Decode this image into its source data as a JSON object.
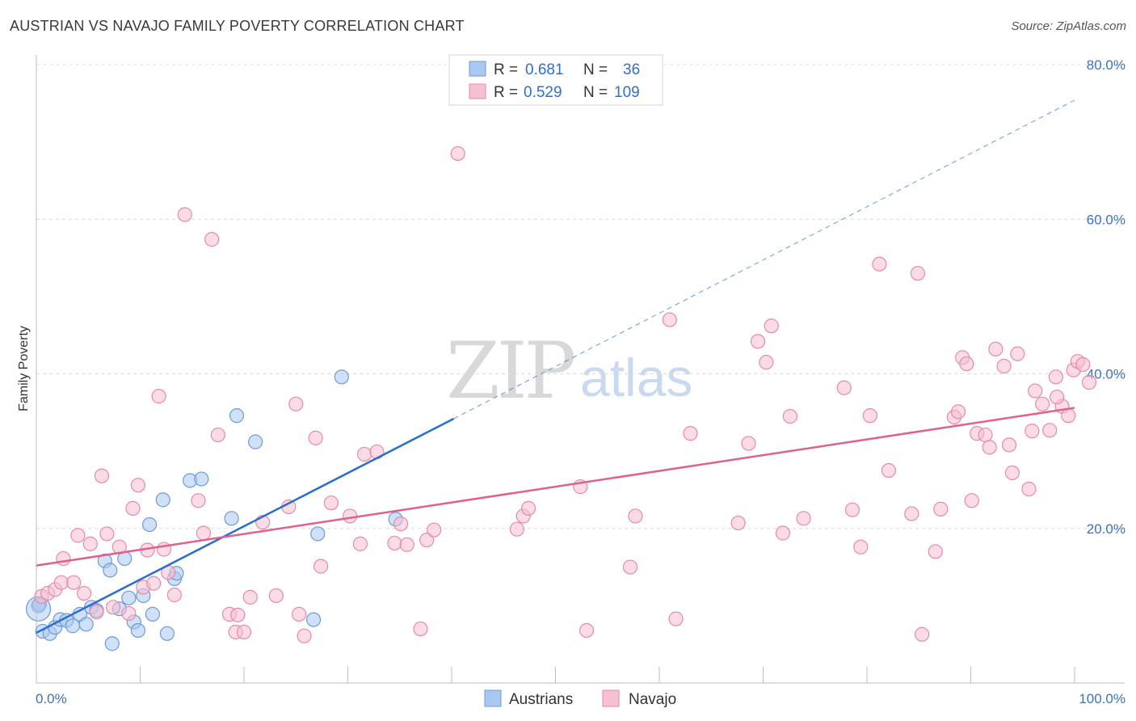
{
  "title": "AUSTRIAN VS NAVAJO FAMILY POVERTY CORRELATION CHART",
  "source": "Source: ZipAtlas.com",
  "watermark": {
    "zip": "ZIP",
    "atlas": "atlas"
  },
  "legend": {
    "rows": [
      {
        "r_label": "R =",
        "r_value": "0.681",
        "n_label": "N =",
        "n_value": "36",
        "color": "#a9c8f0",
        "stroke": "#6f9ad6"
      },
      {
        "r_label": "R =",
        "r_value": "0.529",
        "n_label": "N =",
        "n_value": "109",
        "color": "#f7bfd2",
        "stroke": "#e58aa8"
      }
    ]
  },
  "chart_data": {
    "type": "scatter",
    "title": "AUSTRIAN VS NAVAJO FAMILY POVERTY CORRELATION CHART",
    "xlabel": "",
    "ylabel": "Family Poverty",
    "xlim": [
      0,
      100
    ],
    "ylim": [
      0,
      80
    ],
    "x_tick_labels": [
      "0.0%",
      "100.0%"
    ],
    "y_ticks": [
      20,
      40,
      60,
      80
    ],
    "y_tick_labels": [
      "20.0%",
      "40.0%",
      "60.0%",
      "80.0%"
    ],
    "grid": true,
    "series": [
      {
        "name": "Austrians",
        "color": "#a9c8f0",
        "stroke": "#6f9ad6",
        "line_color": "#2a6fcf",
        "trend": {
          "x0": 0,
          "y0": 6.5,
          "x1": 40.2,
          "y1": 34.2,
          "dashed_to_x": 100,
          "dashed_to_y": 75.4
        },
        "points": [
          [
            0.3,
            10.2
          ],
          [
            0.6,
            6.7
          ],
          [
            1.3,
            6.4
          ],
          [
            1.8,
            7.2
          ],
          [
            2.3,
            8.2
          ],
          [
            2.9,
            8.1
          ],
          [
            3.5,
            7.4
          ],
          [
            4.2,
            8.9
          ],
          [
            4.8,
            7.6
          ],
          [
            5.3,
            9.8
          ],
          [
            5.8,
            9.4
          ],
          [
            6.6,
            15.8
          ],
          [
            7.1,
            14.6
          ],
          [
            7.3,
            5.1
          ],
          [
            8.0,
            9.6
          ],
          [
            8.5,
            16.1
          ],
          [
            8.9,
            11.0
          ],
          [
            9.4,
            7.9
          ],
          [
            9.8,
            6.8
          ],
          [
            10.3,
            11.3
          ],
          [
            10.9,
            20.5
          ],
          [
            11.2,
            8.9
          ],
          [
            12.2,
            23.7
          ],
          [
            12.6,
            6.4
          ],
          [
            13.3,
            13.5
          ],
          [
            13.5,
            14.2
          ],
          [
            14.8,
            26.2
          ],
          [
            15.9,
            26.4
          ],
          [
            18.8,
            21.3
          ],
          [
            19.3,
            34.6
          ],
          [
            21.1,
            31.2
          ],
          [
            26.7,
            8.2
          ],
          [
            27.1,
            19.3
          ],
          [
            29.4,
            39.6
          ],
          [
            34.6,
            21.2
          ],
          [
            0.2,
            10.0
          ]
        ]
      },
      {
        "name": "Navajo",
        "color": "#f7bfd2",
        "stroke": "#e58aa8",
        "line_color": "#e0618d",
        "trend": {
          "x0": 0,
          "y0": 15.2,
          "x1": 100,
          "y1": 35.6
        },
        "points": [
          [
            0.5,
            11.2
          ],
          [
            1.1,
            11.6
          ],
          [
            1.8,
            12.1
          ],
          [
            2.4,
            13.0
          ],
          [
            2.6,
            16.1
          ],
          [
            3.6,
            13.0
          ],
          [
            4.0,
            19.1
          ],
          [
            4.6,
            11.6
          ],
          [
            5.2,
            18.0
          ],
          [
            5.8,
            9.2
          ],
          [
            6.3,
            26.8
          ],
          [
            6.8,
            19.3
          ],
          [
            7.4,
            9.8
          ],
          [
            8.0,
            17.6
          ],
          [
            8.9,
            9.0
          ],
          [
            9.3,
            22.6
          ],
          [
            9.8,
            25.6
          ],
          [
            10.3,
            12.4
          ],
          [
            10.7,
            17.2
          ],
          [
            11.3,
            12.9
          ],
          [
            11.8,
            37.1
          ],
          [
            12.3,
            17.3
          ],
          [
            12.7,
            14.3
          ],
          [
            13.3,
            11.4
          ],
          [
            14.3,
            60.6
          ],
          [
            15.6,
            23.6
          ],
          [
            16.1,
            19.4
          ],
          [
            16.9,
            57.4
          ],
          [
            17.5,
            32.1
          ],
          [
            18.6,
            8.9
          ],
          [
            19.2,
            6.6
          ],
          [
            19.4,
            8.8
          ],
          [
            20.0,
            6.6
          ],
          [
            20.6,
            11.1
          ],
          [
            21.8,
            20.8
          ],
          [
            23.1,
            11.3
          ],
          [
            24.3,
            22.8
          ],
          [
            25.0,
            36.1
          ],
          [
            25.3,
            8.9
          ],
          [
            25.8,
            6.1
          ],
          [
            26.9,
            31.7
          ],
          [
            27.4,
            15.1
          ],
          [
            28.4,
            23.3
          ],
          [
            30.2,
            21.6
          ],
          [
            31.2,
            18.0
          ],
          [
            31.6,
            29.6
          ],
          [
            32.8,
            29.9
          ],
          [
            35.1,
            20.6
          ],
          [
            34.5,
            18.1
          ],
          [
            35.7,
            17.9
          ],
          [
            37.0,
            7.0
          ],
          [
            37.6,
            18.5
          ],
          [
            38.3,
            19.8
          ],
          [
            40.6,
            68.5
          ],
          [
            46.3,
            19.9
          ],
          [
            46.9,
            21.6
          ],
          [
            47.4,
            22.6
          ],
          [
            52.4,
            25.4
          ],
          [
            53.0,
            6.8
          ],
          [
            57.2,
            15.0
          ],
          [
            57.7,
            21.6
          ],
          [
            61.0,
            47.0
          ],
          [
            61.6,
            8.3
          ],
          [
            63.0,
            32.3
          ],
          [
            67.6,
            20.7
          ],
          [
            68.6,
            31.0
          ],
          [
            69.5,
            44.2
          ],
          [
            70.3,
            41.5
          ],
          [
            70.8,
            46.2
          ],
          [
            71.9,
            19.4
          ],
          [
            72.6,
            34.5
          ],
          [
            73.9,
            21.3
          ],
          [
            77.8,
            38.2
          ],
          [
            78.6,
            22.4
          ],
          [
            79.4,
            17.6
          ],
          [
            80.3,
            34.6
          ],
          [
            81.2,
            54.2
          ],
          [
            82.1,
            27.5
          ],
          [
            84.3,
            21.9
          ],
          [
            84.9,
            53.0
          ],
          [
            85.3,
            6.3
          ],
          [
            86.6,
            17.0
          ],
          [
            87.1,
            22.5
          ],
          [
            88.4,
            34.4
          ],
          [
            88.8,
            35.1
          ],
          [
            89.2,
            42.1
          ],
          [
            89.6,
            41.3
          ],
          [
            90.1,
            23.6
          ],
          [
            90.6,
            32.3
          ],
          [
            91.4,
            32.1
          ],
          [
            92.4,
            43.2
          ],
          [
            93.2,
            41.0
          ],
          [
            93.7,
            30.8
          ],
          [
            94.0,
            27.2
          ],
          [
            94.5,
            42.6
          ],
          [
            95.6,
            25.1
          ],
          [
            95.9,
            32.6
          ],
          [
            96.2,
            37.8
          ],
          [
            97.6,
            32.7
          ],
          [
            98.2,
            39.6
          ],
          [
            98.8,
            35.8
          ],
          [
            99.4,
            34.6
          ],
          [
            99.9,
            40.5
          ],
          [
            100.3,
            41.6
          ],
          [
            100.8,
            41.2
          ],
          [
            101.4,
            38.9
          ],
          [
            98.3,
            37.0
          ],
          [
            96.9,
            36.1
          ],
          [
            91.8,
            30.5
          ]
        ]
      }
    ]
  }
}
